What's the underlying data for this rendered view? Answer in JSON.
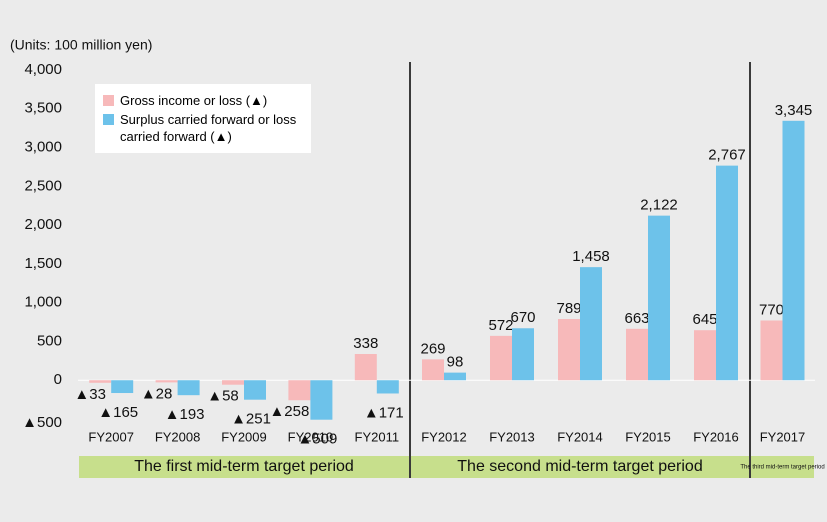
{
  "chart_data": {
    "type": "bar",
    "subtitle": "(Units: 100 million yen)",
    "categories": [
      "FY2007",
      "FY2008",
      "FY2009",
      "FY2010",
      "FY2011",
      "FY2012",
      "FY2013",
      "FY2014",
      "FY2015",
      "FY2016",
      "FY2017"
    ],
    "series": [
      {
        "name": "Gross income or loss (▲)",
        "color": "#f7b9ba",
        "values": [
          -33,
          -28,
          -58,
          -258,
          338,
          269,
          572,
          789,
          663,
          645,
          770
        ],
        "value_labels": [
          "▲33",
          "▲28",
          "▲58",
          "▲258",
          "338",
          "269",
          "572",
          "789",
          "663",
          "645",
          "770"
        ]
      },
      {
        "name": "Surplus carried forward or loss carried forward (▲)",
        "color": "#6dc2ea",
        "values": [
          -165,
          -193,
          -251,
          -509,
          -171,
          98,
          670,
          1458,
          2122,
          2767,
          3345
        ],
        "value_labels": [
          "▲165",
          "▲193",
          "▲251",
          "▲509",
          "▲171",
          "98",
          "670",
          "1,458",
          "2,122",
          "2,767",
          "3,345"
        ]
      }
    ],
    "periods": [
      "The first mid-term target period",
      "The second mid-term target period",
      "The third mid-term target period"
    ],
    "ylim": [
      -500,
      4000
    ],
    "yticks": [
      {
        "value": -500,
        "label": "▲500"
      },
      0,
      500,
      {
        "value": 1000,
        "label": "1,000"
      },
      {
        "value": 1500,
        "label": "1,500"
      },
      {
        "value": 2000,
        "label": "2,000"
      },
      {
        "value": 2500,
        "label": "2,500"
      },
      {
        "value": 3000,
        "label": "3,000"
      },
      {
        "value": 3500,
        "label": "3,500"
      },
      {
        "value": 4000,
        "label": "4,000"
      }
    ],
    "legend": "top-left"
  }
}
